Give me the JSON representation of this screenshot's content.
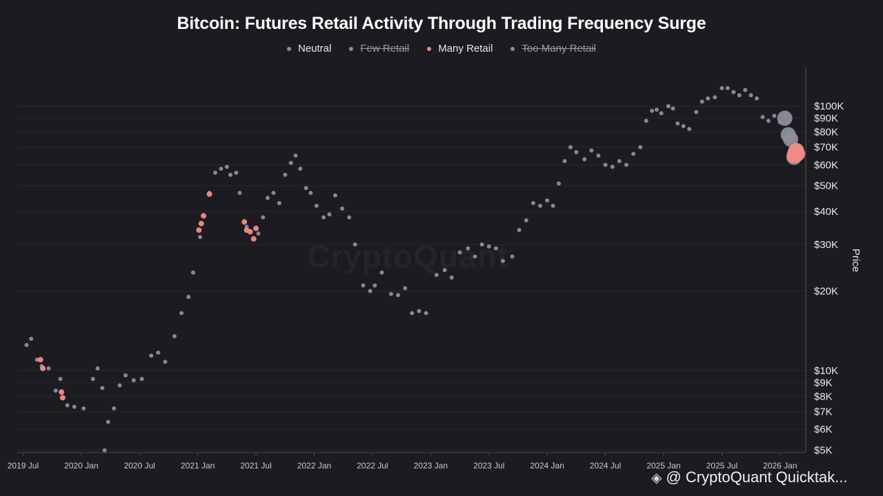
{
  "chart_data": {
    "type": "scatter",
    "title": "Bitcoin: Futures Retail Activity Through Trading Frequency Surge",
    "ylabel": "Price",
    "xlabel": "",
    "y_scale": "log",
    "ylim": [
      4900,
      140000
    ],
    "xlim": [
      2019.45,
      2026.22
    ],
    "x_ticks": [
      {
        "label": "2019 Jul",
        "x": 2019.5
      },
      {
        "label": "2020 Jan",
        "x": 2020.0
      },
      {
        "label": "2020 Jul",
        "x": 2020.5
      },
      {
        "label": "2021 Jan",
        "x": 2021.0
      },
      {
        "label": "2021 Jul",
        "x": 2021.5
      },
      {
        "label": "2022 Jan",
        "x": 2022.0
      },
      {
        "label": "2022 Jul",
        "x": 2022.5
      },
      {
        "label": "2023 Jan",
        "x": 2023.0
      },
      {
        "label": "2023 Jul",
        "x": 2023.5
      },
      {
        "label": "2024 Jan",
        "x": 2024.0
      },
      {
        "label": "2024 Jul",
        "x": 2024.5
      },
      {
        "label": "2025 Jan",
        "x": 2025.0
      },
      {
        "label": "2025 Jul",
        "x": 2025.5
      },
      {
        "label": "2026 Jan",
        "x": 2026.0
      }
    ],
    "y_ticks": [
      {
        "label": "$100K",
        "v": 100000
      },
      {
        "label": "$90K",
        "v": 90000
      },
      {
        "label": "$80K",
        "v": 80000
      },
      {
        "label": "$70K",
        "v": 70000
      },
      {
        "label": "$60K",
        "v": 60000
      },
      {
        "label": "$50K",
        "v": 50000
      },
      {
        "label": "$40K",
        "v": 40000
      },
      {
        "label": "$30K",
        "v": 30000
      },
      {
        "label": "$20K",
        "v": 20000
      },
      {
        "label": "$10K",
        "v": 10000
      },
      {
        "label": "$9K",
        "v": 9000
      },
      {
        "label": "$8K",
        "v": 8000
      },
      {
        "label": "$7K",
        "v": 7000
      },
      {
        "label": "$6K",
        "v": 6000
      },
      {
        "label": "$5K",
        "v": 5000
      }
    ],
    "legend": [
      {
        "name": "Neutral",
        "color": "#8e8e99",
        "active": true
      },
      {
        "name": "Few Retail",
        "color": "#8e8e99",
        "active": false
      },
      {
        "name": "Many Retail",
        "color": "#ef8c84",
        "active": true
      },
      {
        "name": "Too Many Retail",
        "color": "#8e8e99",
        "active": false
      }
    ],
    "series": [
      {
        "name": "Neutral",
        "color": "#8e8e99",
        "points": [
          [
            2019.53,
            12500
          ],
          [
            2019.57,
            13200
          ],
          [
            2019.62,
            11000
          ],
          [
            2019.66,
            10400
          ],
          [
            2019.72,
            10200
          ],
          [
            2019.78,
            8400
          ],
          [
            2019.82,
            9300
          ],
          [
            2019.88,
            7400
          ],
          [
            2019.94,
            7300
          ],
          [
            2020.02,
            7200
          ],
          [
            2020.1,
            9300
          ],
          [
            2020.14,
            10200
          ],
          [
            2020.18,
            8600
          ],
          [
            2020.2,
            5000
          ],
          [
            2020.23,
            6400
          ],
          [
            2020.28,
            7200
          ],
          [
            2020.33,
            8800
          ],
          [
            2020.38,
            9600
          ],
          [
            2020.45,
            9200
          ],
          [
            2020.52,
            9300
          ],
          [
            2020.6,
            11400
          ],
          [
            2020.66,
            11700
          ],
          [
            2020.72,
            10800
          ],
          [
            2020.8,
            13500
          ],
          [
            2020.86,
            16500
          ],
          [
            2020.92,
            19000
          ],
          [
            2020.96,
            23500
          ],
          [
            2021.02,
            32000
          ],
          [
            2021.1,
            47000
          ],
          [
            2021.15,
            56000
          ],
          [
            2021.2,
            58000
          ],
          [
            2021.25,
            59000
          ],
          [
            2021.28,
            55000
          ],
          [
            2021.33,
            56000
          ],
          [
            2021.36,
            47000
          ],
          [
            2021.42,
            35000
          ],
          [
            2021.52,
            33000
          ],
          [
            2021.56,
            38000
          ],
          [
            2021.6,
            45000
          ],
          [
            2021.65,
            47000
          ],
          [
            2021.7,
            43000
          ],
          [
            2021.75,
            55000
          ],
          [
            2021.8,
            61000
          ],
          [
            2021.84,
            65000
          ],
          [
            2021.88,
            58000
          ],
          [
            2021.93,
            49000
          ],
          [
            2021.97,
            47000
          ],
          [
            2022.02,
            42000
          ],
          [
            2022.08,
            38000
          ],
          [
            2022.13,
            39000
          ],
          [
            2022.18,
            46000
          ],
          [
            2022.24,
            41000
          ],
          [
            2022.3,
            38000
          ],
          [
            2022.35,
            30000
          ],
          [
            2022.42,
            21000
          ],
          [
            2022.48,
            20000
          ],
          [
            2022.52,
            21000
          ],
          [
            2022.58,
            23500
          ],
          [
            2022.66,
            19500
          ],
          [
            2022.72,
            19300
          ],
          [
            2022.78,
            20500
          ],
          [
            2022.84,
            16500
          ],
          [
            2022.9,
            16800
          ],
          [
            2022.96,
            16500
          ],
          [
            2023.05,
            23000
          ],
          [
            2023.12,
            24000
          ],
          [
            2023.18,
            22500
          ],
          [
            2023.25,
            28000
          ],
          [
            2023.32,
            29000
          ],
          [
            2023.38,
            27000
          ],
          [
            2023.44,
            30000
          ],
          [
            2023.5,
            29500
          ],
          [
            2023.56,
            29000
          ],
          [
            2023.62,
            26000
          ],
          [
            2023.7,
            27000
          ],
          [
            2023.76,
            34000
          ],
          [
            2023.82,
            37000
          ],
          [
            2023.88,
            43000
          ],
          [
            2023.94,
            42000
          ],
          [
            2024.0,
            44000
          ],
          [
            2024.05,
            42000
          ],
          [
            2024.1,
            51000
          ],
          [
            2024.15,
            62000
          ],
          [
            2024.2,
            70000
          ],
          [
            2024.25,
            67000
          ],
          [
            2024.32,
            63000
          ],
          [
            2024.38,
            68000
          ],
          [
            2024.44,
            65000
          ],
          [
            2024.5,
            60000
          ],
          [
            2024.56,
            59000
          ],
          [
            2024.62,
            62000
          ],
          [
            2024.68,
            60000
          ],
          [
            2024.74,
            66000
          ],
          [
            2024.8,
            70000
          ],
          [
            2024.85,
            88000
          ],
          [
            2024.9,
            96000
          ],
          [
            2024.94,
            97000
          ],
          [
            2024.98,
            94000
          ],
          [
            2025.04,
            100000
          ],
          [
            2025.08,
            98000
          ],
          [
            2025.12,
            86000
          ],
          [
            2025.17,
            84000
          ],
          [
            2025.22,
            82000
          ],
          [
            2025.28,
            95000
          ],
          [
            2025.33,
            104000
          ],
          [
            2025.38,
            107000
          ],
          [
            2025.44,
            108000
          ],
          [
            2025.5,
            117000
          ],
          [
            2025.55,
            117000
          ],
          [
            2025.6,
            113000
          ],
          [
            2025.65,
            110000
          ],
          [
            2025.7,
            115000
          ],
          [
            2025.75,
            110000
          ],
          [
            2025.8,
            107000
          ],
          [
            2025.85,
            91000
          ],
          [
            2025.9,
            88000
          ],
          [
            2025.95,
            92000
          ],
          [
            2026.0,
            87000
          ],
          [
            2026.04,
            90000
          ],
          [
            2026.07,
            78000
          ],
          [
            2026.09,
            75000
          ],
          [
            2026.12,
            64000
          ]
        ]
      },
      {
        "name": "Many Retail",
        "color": "#ef8c84",
        "points": [
          [
            2019.65,
            11000
          ],
          [
            2019.67,
            10200
          ],
          [
            2019.83,
            8300
          ],
          [
            2019.84,
            7900
          ],
          [
            2021.01,
            34000
          ],
          [
            2021.03,
            36000
          ],
          [
            2021.05,
            38500
          ],
          [
            2021.1,
            46500
          ],
          [
            2021.4,
            36500
          ],
          [
            2021.42,
            34000
          ],
          [
            2021.45,
            33500
          ],
          [
            2021.48,
            31500
          ],
          [
            2021.5,
            34500
          ],
          [
            2026.12,
            65000
          ],
          [
            2026.13,
            67000
          ],
          [
            2026.14,
            68000
          ],
          [
            2026.15,
            66000
          ]
        ]
      }
    ]
  },
  "watermark": "CryptoQuant",
  "footer": {
    "brand_text": "@ CryptoQuant Quicktak...",
    "icon": "binance-diamond-icon"
  }
}
